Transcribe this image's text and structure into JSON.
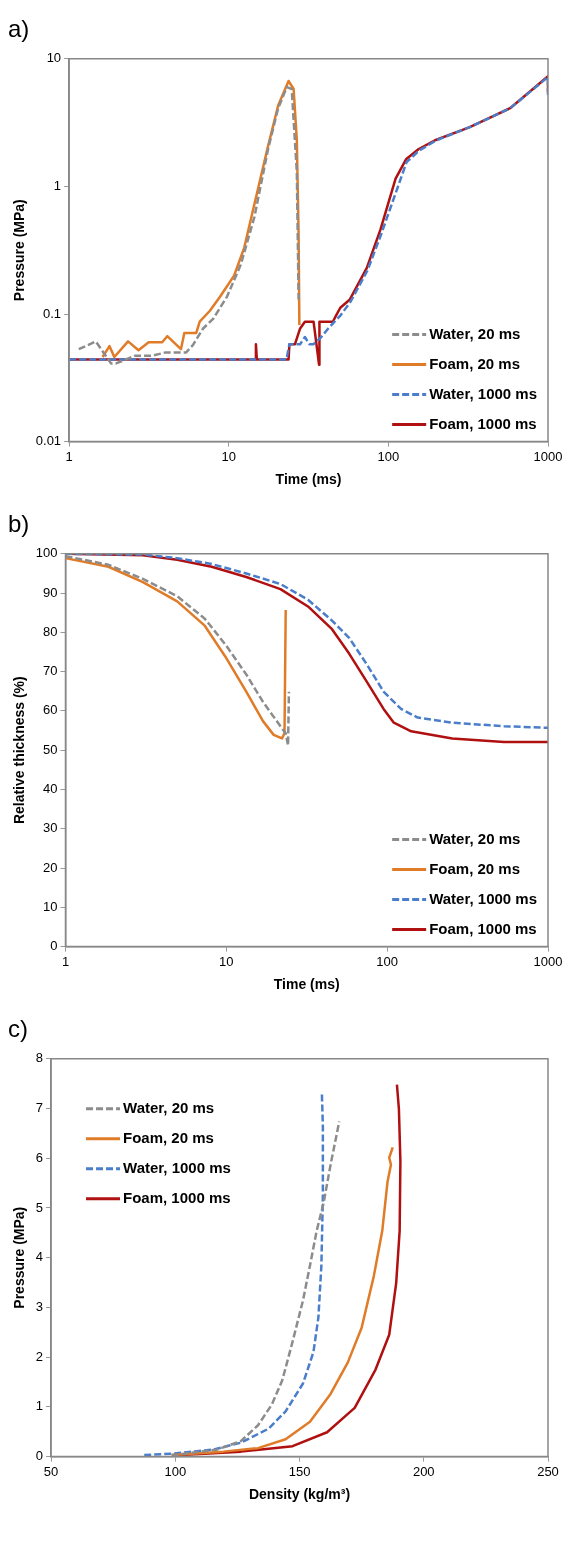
{
  "chart_data": [
    {
      "type": "line",
      "title": "a)",
      "xlabel": "Time (ms)",
      "ylabel": "Pressure (MPa)",
      "log": "xy",
      "xlim": [
        1,
        1000
      ],
      "xticks": [
        1,
        10,
        100,
        1000
      ],
      "ylim": [
        0.01,
        10
      ],
      "yticks": [
        0.01,
        0.1,
        1,
        10
      ],
      "legend": "bottom right",
      "marker": "none",
      "series": [
        {
          "name": "Water, 20 ms",
          "color": "#8c8c8c",
          "line_style": "dashed",
          "x": [
            1.15,
            1.47,
            1.83,
            1.97,
            2.58,
            3.3,
            4.02,
            5.41,
            5.96,
            6.91,
            8.01,
            9.76,
            11.9,
            14.5,
            17.6,
            20.4,
            23.1,
            24.8,
            26.7,
            27.4
          ],
          "values": [
            0.053,
            0.061,
            0.041,
            0.041,
            0.047,
            0.047,
            0.05,
            0.05,
            0.057,
            0.077,
            0.092,
            0.137,
            0.244,
            0.58,
            1.94,
            4.1,
            6,
            5.8,
            1.3,
            0.13
          ]
        },
        {
          "name": "Foam, 20 ms",
          "color": "#e07b28",
          "line_style": "solid",
          "x": [
            1.62,
            1.79,
            1.92,
            2.34,
            2.72,
            3.15,
            3.83,
            4.12,
            5.02,
            5.27,
            6.26,
            6.58,
            7.62,
            8.84,
            10.8,
            12.5,
            14.5,
            17.6,
            20.4,
            23.7,
            25.5,
            26.7,
            27.4,
            27.7
          ],
          "values": [
            0.046,
            0.056,
            0.046,
            0.061,
            0.052,
            0.06,
            0.06,
            0.067,
            0.053,
            0.071,
            0.071,
            0.087,
            0.106,
            0.137,
            0.2,
            0.33,
            0.73,
            2.05,
            4.3,
            6.7,
            5.8,
            2.3,
            0.41,
            0.082
          ]
        },
        {
          "name": "Water, 1000 ms",
          "color": "#4a7ecb",
          "line_style": "dashed",
          "x": [
            1,
            23,
            24,
            28,
            30,
            32,
            34,
            38,
            42,
            46,
            50,
            58,
            74,
            90,
            114,
            130,
            155,
            200,
            320,
            580,
            1000,
            1000
          ],
          "values": [
            0.044,
            0.044,
            0.058,
            0.058,
            0.066,
            0.058,
            0.058,
            0.066,
            0.077,
            0.087,
            0.097,
            0.125,
            0.22,
            0.42,
            0.97,
            1.55,
            1.9,
            2.3,
            2.9,
            4.1,
            7.2,
            5.2
          ]
        },
        {
          "name": "Foam, 1000 ms",
          "color": "#b01010",
          "line_style": "solid",
          "x": [
            1,
            14.8,
            14.8,
            15,
            23.7,
            24,
            26,
            28,
            30,
            34,
            36.8,
            37,
            40,
            44.9,
            47,
            50,
            57.4,
            73.3,
            89.3,
            111,
            129,
            153,
            196,
            321,
            579,
            1000,
            1000
          ],
          "values": [
            0.044,
            0.044,
            0.058,
            0.044,
            0.044,
            0.058,
            0.058,
            0.077,
            0.087,
            0.087,
            0.04,
            0.087,
            0.087,
            0.087,
            0.097,
            0.112,
            0.13,
            0.23,
            0.46,
            1.15,
            1.63,
            1.94,
            2.3,
            2.9,
            4.1,
            7.3,
            5.5
          ]
        }
      ]
    },
    {
      "type": "line",
      "title": "b)",
      "xlabel": "Time (ms)",
      "ylabel": "Relative thickness (%)",
      "log": "x",
      "xlim": [
        1,
        1000
      ],
      "xticks": [
        1,
        10,
        100,
        1000
      ],
      "ylim": [
        0,
        100
      ],
      "yticks": [
        0,
        10,
        20,
        30,
        40,
        50,
        60,
        70,
        80,
        90,
        100
      ],
      "legend": "bottom right",
      "marker": "none",
      "series": [
        {
          "name": "Water, 20 ms",
          "color": "#8c8c8c",
          "line_style": "dashed",
          "x": [
            1,
            1.85,
            3.03,
            4.95,
            7.34,
            9.87,
            13.3,
            16.9,
            21.7,
            23.4,
            24.2,
            24.5
          ],
          "values": [
            99.4,
            97.2,
            93.6,
            89.2,
            83.5,
            76.9,
            69.3,
            62.3,
            56.1,
            54.3,
            51.2,
            64.9
          ]
        },
        {
          "name": "Foam, 20 ms",
          "color": "#e07b28",
          "line_style": "solid",
          "x": [
            1,
            1.85,
            3.03,
            4.95,
            7.34,
            9.87,
            13.3,
            16.9,
            19.7,
            22.2,
            23,
            23.4
          ],
          "values": [
            98.9,
            96.7,
            92.8,
            87.9,
            81.7,
            73.8,
            64.9,
            57.4,
            53.9,
            53,
            54.3,
            85.7
          ]
        },
        {
          "name": "Water, 1000 ms",
          "color": "#4a7ecb",
          "line_style": "dashed",
          "x": [
            1,
            3.03,
            4.95,
            8.11,
            13.3,
            21.7,
            32.2,
            45.4,
            58,
            74.3,
            95,
            122,
            155,
            254,
            532,
            1000
          ],
          "values": [
            100,
            99.8,
            98.9,
            97.4,
            95,
            92.3,
            88.3,
            83,
            78.6,
            72,
            64.9,
            60.5,
            58.3,
            57,
            56.1,
            55.7
          ]
        },
        {
          "name": "Foam, 1000 ms",
          "color": "#b01010",
          "line_style": "solid",
          "x": [
            1,
            3.03,
            4.95,
            8.11,
            13.3,
            21.7,
            32.2,
            45.4,
            58,
            74.3,
            95,
            110,
            141,
            254,
            532,
            1000
          ],
          "values": [
            100,
            99.6,
            98.5,
            96.7,
            94.1,
            91,
            86.6,
            80.8,
            74.6,
            67.6,
            60.5,
            57,
            54.8,
            53,
            52.1,
            52.1
          ]
        }
      ]
    },
    {
      "type": "line",
      "title": "c)",
      "xlabel": "Density (kg/m³)",
      "ylabel": "Pressure (MPa)",
      "xlim": [
        50,
        250
      ],
      "xticks": [
        50,
        100,
        150,
        200,
        250
      ],
      "ylim": [
        0,
        8
      ],
      "yticks": [
        0,
        1,
        2,
        3,
        4,
        5,
        6,
        7,
        8
      ],
      "legend": "top left",
      "marker": "none",
      "series": [
        {
          "name": "Water, 20 ms",
          "color": "#8c8c8c",
          "line_style": "dashed",
          "x": [
            98.6,
            116.7,
            126.4,
            133.3,
            138.9,
            143.1,
            147.2,
            151.4,
            154.2,
            156.9,
            159.7,
            162.5,
            166
          ],
          "values": [
            0.03,
            0.14,
            0.31,
            0.63,
            1.05,
            1.54,
            2.31,
            3.14,
            3.84,
            4.54,
            5.1,
            5.87,
            6.74
          ]
        },
        {
          "name": "Foam, 20 ms",
          "color": "#e07b28",
          "line_style": "solid",
          "x": [
            98.6,
            119.4,
            133.3,
            144.4,
            154.2,
            162.5,
            169.4,
            175,
            179.9,
            183.3,
            185.4,
            186.8,
            186.1,
            187.5
          ],
          "values": [
            0.03,
            0.1,
            0.17,
            0.35,
            0.7,
            1.26,
            1.89,
            2.59,
            3.63,
            4.54,
            5.52,
            5.87,
            6.01,
            6.22
          ]
        },
        {
          "name": "Water, 1000 ms",
          "color": "#4a7ecb",
          "line_style": "dashed",
          "x": [
            87.5,
            98.6,
            115.3,
            126.4,
            137.5,
            144.4,
            151.4,
            155.6,
            157.6,
            158.8,
            159.4,
            159.4,
            159
          ],
          "values": [
            0.03,
            0.06,
            0.14,
            0.28,
            0.56,
            0.91,
            1.47,
            2.1,
            2.8,
            3.84,
            5.24,
            6.64,
            7.3
          ]
        },
        {
          "name": "Foam, 1000 ms",
          "color": "#b01010",
          "line_style": "solid",
          "x": [
            98.6,
            126.4,
            147.2,
            161.1,
            172.2,
            180.6,
            186.1,
            188.9,
            190.3,
            190.6,
            190,
            189.2
          ],
          "values": [
            0.02,
            0.1,
            0.21,
            0.49,
            0.98,
            1.75,
            2.45,
            3.49,
            4.54,
            5.94,
            6.99,
            7.48
          ]
        }
      ]
    }
  ]
}
